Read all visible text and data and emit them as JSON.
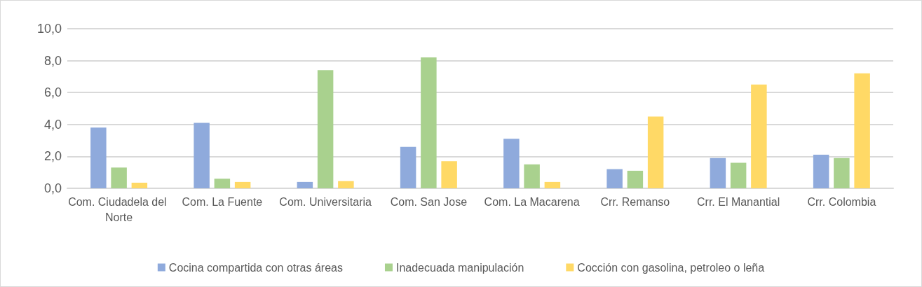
{
  "chart_data": {
    "type": "bar",
    "categories": [
      "Com. Ciudadela del Norte",
      "Com. La Fuente",
      "Com. Universitaria",
      "Com. San Jose",
      "Com. La Macarena",
      "Crr. Remanso",
      "Crr. El Manantial",
      "Crr. Colombia"
    ],
    "series": [
      {
        "name": "Cocina compartida con otras áreas",
        "color": "#8faadc",
        "values": [
          3.8,
          4.1,
          0.4,
          2.6,
          3.1,
          1.2,
          1.9,
          2.1
        ]
      },
      {
        "name": "Inadecuada manipulación",
        "color": "#a9d18e",
        "values": [
          1.3,
          0.6,
          7.4,
          8.2,
          1.5,
          1.1,
          1.6,
          1.9
        ]
      },
      {
        "name": "Cocción con gasolina, petroleo o leña",
        "color": "#ffd966",
        "values": [
          0.35,
          0.4,
          0.45,
          1.7,
          0.4,
          4.5,
          6.5,
          7.2
        ]
      }
    ],
    "ylim": [
      0,
      10
    ],
    "yticks": [
      {
        "value": 0,
        "label": "0,0"
      },
      {
        "value": 2,
        "label": "2,0"
      },
      {
        "value": 4,
        "label": "4,0"
      },
      {
        "value": 6,
        "label": "6,0"
      },
      {
        "value": 8,
        "label": "8,0"
      },
      {
        "value": 10,
        "label": "10,0"
      }
    ],
    "grid": "y",
    "legend": "bottom"
  }
}
